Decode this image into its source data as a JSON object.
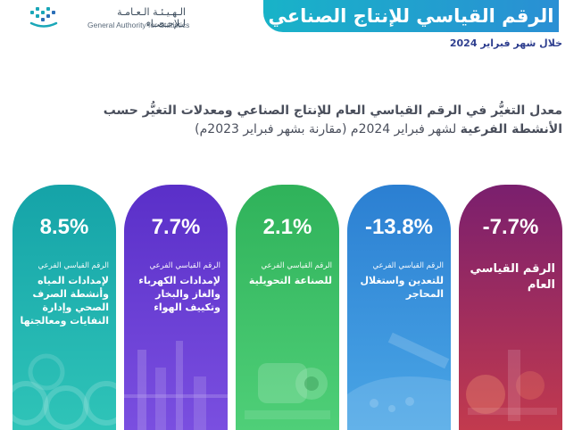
{
  "header": {
    "title": "الرقم القياسي للإنتاج الصناعي",
    "org_ar": "الـهـيـئـة الـعـامـة لـلإحـصـاء",
    "org_en": "General Authority for Statistics",
    "period": "خلال شهر فبراير 2024"
  },
  "heading": {
    "line1": "معدل التغيُّر في الرقم القياسي العام للإنتاج الصناعي ومعدلات التغيُّر حسب",
    "line2_bold": "الأنشطة الفرعية",
    "line2_rest": " لشهر فبراير 2024م (مقارنة بشهر فبراير 2023م)"
  },
  "cards": [
    {
      "value": "-7.7%",
      "subtitle": "",
      "name": "الرقم القياسي العام",
      "color_top": "#7a1f6e",
      "color_bottom": "#c23a4e"
    },
    {
      "value": "-13.8%",
      "subtitle": "الرقم القياسي الفرعي",
      "name": "للتعدين واستغلال المحاجر",
      "color_top": "#2b7fd2",
      "color_bottom": "#4aa6e6"
    },
    {
      "value": "2.1%",
      "subtitle": "الرقم القياسي الفرعي",
      "name": "للصناعة التحويلية",
      "color_top": "#2fb25a",
      "color_bottom": "#4fcf78"
    },
    {
      "value": "7.7%",
      "subtitle": "الرقم القياسي الفرعي",
      "name": "لإمدادات الكهرباء والغاز والبخار وتكييف الهواء",
      "color_top": "#5a2fc8",
      "color_bottom": "#7a4fe0"
    },
    {
      "value": "8.5%",
      "subtitle": "الرقم القياسي الفرعي",
      "name": "لإمدادات المياه وأنشطة الصرف الصحي وإدارة النفايات ومعالجتها",
      "color_top": "#15a3a8",
      "color_bottom": "#2fc4b8"
    }
  ]
}
